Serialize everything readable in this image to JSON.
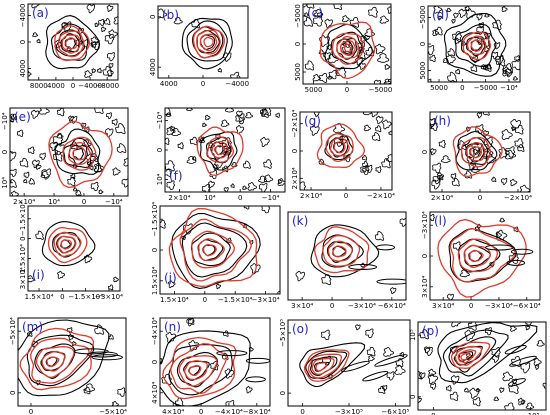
{
  "colors": {
    "model": "#e23a2a",
    "observed": "#000000",
    "panel_label": "#2323c8"
  },
  "panels": [
    {
      "label": "(a)",
      "xticks": [
        "8000",
        "4000",
        "0",
        "−4000",
        "−8000"
      ],
      "yticks": [
        "−4000",
        "0",
        "4000"
      ]
    },
    {
      "label": "(b)",
      "xticks": [
        "4000",
        "0",
        "−4000"
      ],
      "yticks": [
        "0",
        "4000"
      ]
    },
    {
      "label": "(c)",
      "xticks": [
        "5000",
        "0",
        "−5000"
      ],
      "yticks": [
        "−5000",
        "0",
        "5000"
      ]
    },
    {
      "label": "(d)",
      "xticks": [
        "5000",
        "0",
        "−5000",
        "−10⁴"
      ],
      "yticks": [
        "−5000",
        "0",
        "5000"
      ]
    },
    {
      "label": "(e)",
      "xticks": [
        "2×10⁴",
        "10⁴",
        "0",
        "−10⁴"
      ],
      "yticks": [
        "−10⁴",
        "0",
        "10⁴"
      ]
    },
    {
      "label": "(f)",
      "xticks": [
        "2×10⁴",
        "10⁴",
        "0",
        "−10⁴"
      ],
      "yticks": [
        "−10⁴",
        "0",
        "10⁴"
      ]
    },
    {
      "label": "(g)",
      "xticks": [
        "2×10⁴",
        "0",
        "−2×10⁴"
      ],
      "yticks": [
        "−2×10⁴",
        "0",
        "2×10⁴"
      ]
    },
    {
      "label": "(h)",
      "xticks": [
        "2×10⁴",
        "0",
        "−2×10⁴"
      ],
      "yticks": [
        "0"
      ]
    },
    {
      "label": "(i)",
      "xticks": [
        "1.5×10⁴",
        "0",
        "−1.5×10⁴",
        "−3×10⁴"
      ],
      "yticks": [
        "−1.5×10⁴",
        "0",
        "1.5×10⁴",
        "3×10⁴"
      ]
    },
    {
      "label": "(j)",
      "xticks": [
        "1.5×10⁴",
        "0",
        "−1.5×10⁴",
        "−3×10⁴"
      ],
      "yticks": [
        "−1.5×10⁴",
        "0",
        "1.5×10⁴"
      ]
    },
    {
      "label": "(k)",
      "xticks": [
        "3×10⁴",
        "0",
        "−3×10⁴",
        "−6×10⁴"
      ],
      "yticks": []
    },
    {
      "label": "(l)",
      "xticks": [
        "3×10⁴",
        "0",
        "−3×10⁴",
        "−6×10⁴"
      ],
      "yticks": [
        "−3×10⁴",
        "0",
        "3×10⁴"
      ]
    },
    {
      "label": "(m)",
      "xticks": [
        "0",
        "−5×10⁴"
      ],
      "yticks": [
        "−5×10⁴",
        "0"
      ]
    },
    {
      "label": "(n)",
      "xticks": [
        "4×10⁴",
        "0",
        "−4×10⁴",
        "−8×10⁴"
      ],
      "yticks": [
        "−4×10⁴",
        "0",
        "4×10⁴"
      ]
    },
    {
      "label": "(o)",
      "xticks": [
        "0",
        "−3×10⁵",
        "−6×10⁵"
      ],
      "yticks": [
        "−5×10⁵",
        "0"
      ]
    },
    {
      "label": "(p)",
      "xticks": [
        "0",
        "−10⁵"
      ],
      "yticks": [
        "10⁵",
        "0"
      ]
    }
  ]
}
